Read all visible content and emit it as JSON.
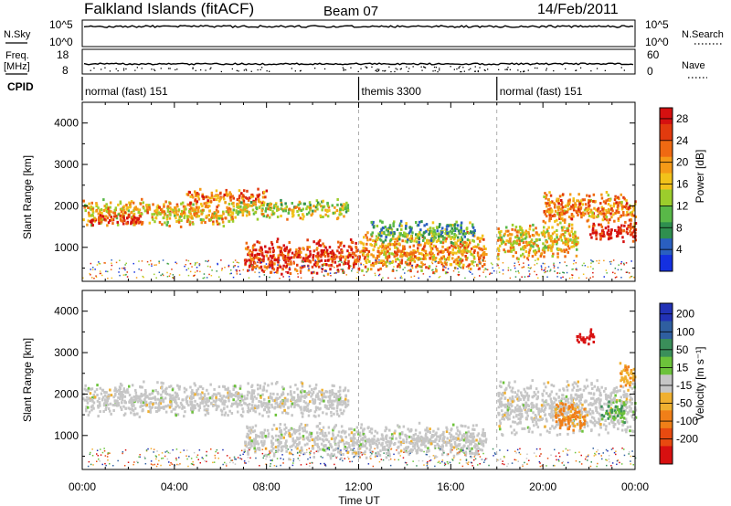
{
  "header": {
    "station": "Falkland Islands (fitACF)",
    "beam": "Beam 07",
    "date": "14/Feb/2011"
  },
  "left_labels": {
    "nsky": "N.Sky",
    "freq_line1": "Freq.",
    "freq_line2": "[MHz]",
    "cpid": "CPID"
  },
  "right_labels": {
    "nsearch": "N.Search",
    "nave": "Nave"
  },
  "ticks": {
    "nsky_top": "10^5",
    "nsky_bottom": "10^0",
    "freq_top": "18",
    "freq_bottom": "8",
    "nsearch_top": "10^5",
    "nsearch_bottom": "10^0",
    "nave_top": "60",
    "nave_bottom": "0"
  },
  "cpid_segments": [
    {
      "label": "normal (fast) 151",
      "start_hour": 0,
      "end_hour": 12
    },
    {
      "label": "themis 3300",
      "start_hour": 12,
      "end_hour": 18
    },
    {
      "label": "normal (fast) 151",
      "start_hour": 18,
      "end_hour": 24
    }
  ],
  "colorbars": {
    "power": {
      "label": "Power [dB]",
      "ticks": [
        "4",
        "8",
        "12",
        "16",
        "20",
        "24",
        "28"
      ],
      "colors": [
        "#1430e0",
        "#2a5fc0",
        "#2f8f4f",
        "#59b848",
        "#9ccd2c",
        "#f2c21a",
        "#f59a17",
        "#ef6912",
        "#e23a0e",
        "#d51010"
      ]
    },
    "velocity": {
      "label": "Velocity [m s⁻¹]",
      "ticks": [
        "200",
        "100",
        "50",
        "15",
        "-15",
        "-50",
        "-100",
        "-200"
      ],
      "colors": [
        "#2232b6",
        "#2f5fa0",
        "#3a8f5a",
        "#6cc23a",
        "#c6c6c6",
        "#f0b030",
        "#f07f18",
        "#e84a10",
        "#d81010"
      ]
    }
  },
  "chart_data": [
    {
      "type": "heatmap",
      "panel": "power",
      "xlabel": "Time UT",
      "ylabel": "Slant Range [km]",
      "xlim_hours": [
        0,
        24
      ],
      "ylim": [
        180,
        4500
      ],
      "x_ticks": [
        "00:00",
        "04:00",
        "08:00",
        "12:00",
        "16:00",
        "20:00",
        "00:00"
      ],
      "y_ticks": [
        1000,
        2000,
        3000,
        4000
      ],
      "colorbar_label": "Power [dB]",
      "value_range": [
        0,
        30
      ],
      "echo_regions": [
        {
          "t_start": 0.0,
          "t_end": 6.5,
          "range_center": 1850,
          "range_halfwidth": 350,
          "power": 18
        },
        {
          "t_start": 0.3,
          "t_end": 2.5,
          "range_center": 1700,
          "range_halfwidth": 150,
          "power": 27
        },
        {
          "t_start": 4.5,
          "t_end": 8.0,
          "range_center": 2250,
          "range_halfwidth": 200,
          "power": 22
        },
        {
          "t_start": 6.5,
          "t_end": 11.5,
          "range_center": 1950,
          "range_halfwidth": 250,
          "power": 15
        },
        {
          "t_start": 7.0,
          "t_end": 12.0,
          "range_center": 800,
          "range_halfwidth": 450,
          "power": 26
        },
        {
          "t_start": 12.0,
          "t_end": 17.5,
          "range_center": 900,
          "range_halfwidth": 500,
          "power": 20
        },
        {
          "t_start": 12.5,
          "t_end": 17.0,
          "range_center": 1400,
          "range_halfwidth": 300,
          "power": 10
        },
        {
          "t_start": 18.0,
          "t_end": 21.5,
          "range_center": 1200,
          "range_halfwidth": 500,
          "power": 17
        },
        {
          "t_start": 20.0,
          "t_end": 24.0,
          "range_center": 1950,
          "range_halfwidth": 450,
          "power": 21
        },
        {
          "t_start": 22.0,
          "t_end": 24.0,
          "range_center": 1400,
          "range_halfwidth": 250,
          "power": 28
        }
      ]
    },
    {
      "type": "heatmap",
      "panel": "velocity",
      "xlabel": "Time UT",
      "ylabel": "Slant Range [km]",
      "xlim_hours": [
        0,
        24
      ],
      "ylim": [
        180,
        4500
      ],
      "x_ticks": [
        "00:00",
        "04:00",
        "08:00",
        "12:00",
        "16:00",
        "20:00",
        "00:00"
      ],
      "y_ticks": [
        1000,
        2000,
        3000,
        4000
      ],
      "colorbar_label": "Velocity [m s⁻¹]",
      "value_range": [
        -200,
        200
      ],
      "echo_regions": [
        {
          "t_start": 0.0,
          "t_end": 11.5,
          "range_center": 1900,
          "range_halfwidth": 450,
          "velocity": 0
        },
        {
          "t_start": 7.0,
          "t_end": 17.5,
          "range_center": 900,
          "range_halfwidth": 450,
          "velocity": 0
        },
        {
          "t_start": 18.0,
          "t_end": 24.0,
          "range_center": 1700,
          "range_halfwidth": 700,
          "velocity": 0
        },
        {
          "t_start": 21.4,
          "t_end": 22.2,
          "range_center": 3400,
          "range_halfwidth": 200,
          "velocity": -200
        },
        {
          "t_start": 22.5,
          "t_end": 23.5,
          "range_center": 1600,
          "range_halfwidth": 300,
          "velocity": 60
        },
        {
          "t_start": 20.5,
          "t_end": 21.8,
          "range_center": 1500,
          "range_halfwidth": 400,
          "velocity": -80
        },
        {
          "t_start": 23.3,
          "t_end": 24.0,
          "range_center": 2500,
          "range_halfwidth": 350,
          "velocity": -60
        }
      ]
    }
  ]
}
